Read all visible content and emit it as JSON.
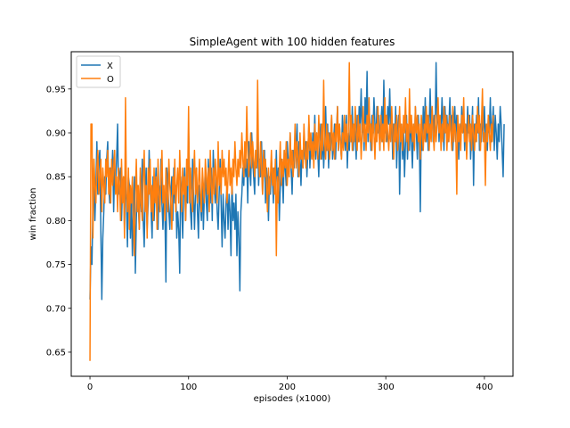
{
  "chart_data": {
    "type": "line",
    "title": "SimpleAgent with 100 hidden features",
    "xlabel": "episodes (x1000)",
    "ylabel": "win fraction",
    "xlim": [
      -19,
      429
    ],
    "ylim": [
      0.6225,
      0.9925
    ],
    "xticks": [
      0,
      100,
      200,
      300,
      400
    ],
    "yticks": [
      0.65,
      0.7,
      0.75,
      0.8,
      0.85,
      0.9,
      0.95
    ],
    "ytick_labels": [
      "0.65",
      "0.70",
      "0.75",
      "0.80",
      "0.85",
      "0.90",
      "0.95"
    ],
    "grid": false,
    "legend_position": "top-left",
    "x_start": 0,
    "x_step": 1,
    "series": [
      {
        "name": "X",
        "color": "#1f77b4",
        "values": [
          0.71,
          0.77,
          0.75,
          0.82,
          0.86,
          0.8,
          0.84,
          0.89,
          0.83,
          0.87,
          0.88,
          0.79,
          0.71,
          0.78,
          0.81,
          0.85,
          0.83,
          0.87,
          0.89,
          0.84,
          0.82,
          0.86,
          0.85,
          0.88,
          0.81,
          0.86,
          0.84,
          0.87,
          0.91,
          0.83,
          0.85,
          0.86,
          0.8,
          0.84,
          0.85,
          0.79,
          0.86,
          0.82,
          0.77,
          0.85,
          0.84,
          0.78,
          0.83,
          0.76,
          0.81,
          0.85,
          0.74,
          0.8,
          0.84,
          0.82,
          0.79,
          0.85,
          0.81,
          0.87,
          0.8,
          0.77,
          0.83,
          0.86,
          0.79,
          0.82,
          0.88,
          0.84,
          0.81,
          0.78,
          0.85,
          0.8,
          0.83,
          0.86,
          0.82,
          0.79,
          0.84,
          0.81,
          0.87,
          0.82,
          0.79,
          0.83,
          0.81,
          0.73,
          0.86,
          0.84,
          0.81,
          0.79,
          0.83,
          0.85,
          0.8,
          0.86,
          0.82,
          0.84,
          0.78,
          0.81,
          0.79,
          0.74,
          0.85,
          0.82,
          0.78,
          0.83,
          0.86,
          0.8,
          0.84,
          0.82,
          0.9,
          0.85,
          0.81,
          0.79,
          0.87,
          0.83,
          0.79,
          0.83,
          0.86,
          0.81,
          0.78,
          0.84,
          0.82,
          0.8,
          0.85,
          0.79,
          0.83,
          0.86,
          0.82,
          0.8,
          0.87,
          0.84,
          0.82,
          0.86,
          0.8,
          0.88,
          0.84,
          0.82,
          0.85,
          0.81,
          0.79,
          0.83,
          0.87,
          0.82,
          0.77,
          0.83,
          0.8,
          0.78,
          0.82,
          0.84,
          0.79,
          0.83,
          0.81,
          0.76,
          0.85,
          0.8,
          0.82,
          0.79,
          0.83,
          0.76,
          0.81,
          0.78,
          0.72,
          0.81,
          0.83,
          0.86,
          0.84,
          0.88,
          0.85,
          0.87,
          0.82,
          0.89,
          0.86,
          0.84,
          0.9,
          0.87,
          0.85,
          0.83,
          0.88,
          0.86,
          0.9,
          0.84,
          0.87,
          0.85,
          0.89,
          0.83,
          0.86,
          0.88,
          0.82,
          0.86,
          0.84,
          0.8,
          0.85,
          0.83,
          0.87,
          0.85,
          0.82,
          0.86,
          0.84,
          0.88,
          0.83,
          0.86,
          0.8,
          0.84,
          0.87,
          0.85,
          0.82,
          0.88,
          0.86,
          0.84,
          0.89,
          0.87,
          0.85,
          0.9,
          0.86,
          0.83,
          0.88,
          0.86,
          0.9,
          0.87,
          0.91,
          0.85,
          0.89,
          0.87,
          0.84,
          0.88,
          0.86,
          0.9,
          0.87,
          0.89,
          0.85,
          0.88,
          0.91,
          0.86,
          0.89,
          0.87,
          0.9,
          0.88,
          0.92,
          0.87,
          0.9,
          0.88,
          0.85,
          0.89,
          0.91,
          0.87,
          0.9,
          0.86,
          0.89,
          0.93,
          0.88,
          0.91,
          0.86,
          0.9,
          0.88,
          0.92,
          0.87,
          0.89,
          0.91,
          0.87,
          0.9,
          0.93,
          0.88,
          0.91,
          0.89,
          0.87,
          0.92,
          0.89,
          0.9,
          0.88,
          0.92,
          0.86,
          0.9,
          0.88,
          0.91,
          0.89,
          0.93,
          0.88,
          0.91,
          0.9,
          0.87,
          0.92,
          0.89,
          0.93,
          0.91,
          0.95,
          0.9,
          0.92,
          0.88,
          0.94,
          0.91,
          0.97,
          0.89,
          0.93,
          0.91,
          0.88,
          0.92,
          0.9,
          0.94,
          0.91,
          0.89,
          0.93,
          0.9,
          0.92,
          0.88,
          0.91,
          0.93,
          0.89,
          0.96,
          0.9,
          0.92,
          0.89,
          0.93,
          0.91,
          0.95,
          0.9,
          0.92,
          0.87,
          0.91,
          0.89,
          0.93,
          0.86,
          0.9,
          0.92,
          0.83,
          0.89,
          0.91,
          0.87,
          0.9,
          0.85,
          0.89,
          0.92,
          0.87,
          0.9,
          0.88,
          0.92,
          0.89,
          0.86,
          0.91,
          0.88,
          0.93,
          0.9,
          0.87,
          0.92,
          0.89,
          0.81,
          0.91,
          0.88,
          0.93,
          0.9,
          0.94,
          0.89,
          0.92,
          0.88,
          0.91,
          0.95,
          0.9,
          0.93,
          0.89,
          0.92,
          0.9,
          0.98,
          0.91,
          0.93,
          0.89,
          0.92,
          0.9,
          0.94,
          0.91,
          0.88,
          0.93,
          0.9,
          0.92,
          0.89,
          0.91,
          0.94,
          0.9,
          0.92,
          0.88,
          0.91,
          0.93,
          0.89,
          0.92,
          0.9,
          0.87,
          0.91,
          0.89,
          0.93,
          0.9,
          0.92,
          0.88,
          0.91,
          0.89,
          0.93,
          0.9,
          0.92,
          0.87,
          0.9,
          0.93,
          0.84,
          0.91,
          0.89,
          0.92,
          0.9,
          0.94,
          0.88,
          0.91,
          0.89,
          0.92,
          0.9,
          0.93,
          0.89,
          0.91,
          0.88,
          0.92,
          0.9,
          0.94,
          0.89,
          0.91,
          0.93,
          0.88,
          0.92,
          0.9,
          0.87,
          0.91,
          0.89,
          0.93,
          0.91,
          0.88,
          0.85,
          0.91
        ]
      },
      {
        "name": "O",
        "color": "#ff7f0e",
        "values": [
          0.64,
          0.91,
          0.91,
          0.78,
          0.87,
          0.84,
          0.82,
          0.86,
          0.88,
          0.83,
          0.85,
          0.87,
          0.81,
          0.86,
          0.84,
          0.82,
          0.87,
          0.85,
          0.88,
          0.83,
          0.86,
          0.82,
          0.87,
          0.84,
          0.86,
          0.88,
          0.83,
          0.85,
          0.81,
          0.86,
          0.84,
          0.8,
          0.87,
          0.82,
          0.85,
          0.78,
          0.94,
          0.83,
          0.81,
          0.86,
          0.79,
          0.84,
          0.82,
          0.85,
          0.8,
          0.76,
          0.83,
          0.87,
          0.81,
          0.84,
          0.79,
          0.86,
          0.82,
          0.8,
          0.85,
          0.88,
          0.81,
          0.84,
          0.78,
          0.86,
          0.83,
          0.87,
          0.81,
          0.84,
          0.8,
          0.86,
          0.82,
          0.85,
          0.79,
          0.87,
          0.83,
          0.81,
          0.85,
          0.88,
          0.82,
          0.84,
          0.8,
          0.86,
          0.83,
          0.81,
          0.87,
          0.84,
          0.82,
          0.79,
          0.85,
          0.83,
          0.87,
          0.81,
          0.84,
          0.86,
          0.82,
          0.88,
          0.84,
          0.81,
          0.86,
          0.83,
          0.85,
          0.8,
          0.87,
          0.84,
          0.93,
          0.82,
          0.86,
          0.83,
          0.81,
          0.85,
          0.88,
          0.83,
          0.86,
          0.82,
          0.84,
          0.87,
          0.83,
          0.81,
          0.86,
          0.84,
          0.82,
          0.87,
          0.85,
          0.83,
          0.86,
          0.81,
          0.88,
          0.84,
          0.82,
          0.86,
          0.83,
          0.87,
          0.85,
          0.82,
          0.89,
          0.84,
          0.86,
          0.83,
          0.88,
          0.85,
          0.87,
          0.84,
          0.86,
          0.82,
          0.85,
          0.88,
          0.84,
          0.86,
          0.83,
          0.87,
          0.85,
          0.89,
          0.86,
          0.84,
          0.87,
          0.85,
          0.88,
          0.86,
          0.9,
          0.87,
          0.85,
          0.89,
          0.86,
          0.93,
          0.88,
          0.85,
          0.87,
          0.9,
          0.86,
          0.89,
          0.87,
          0.85,
          0.88,
          0.86,
          0.96,
          0.87,
          0.85,
          0.89,
          0.86,
          0.83,
          0.88,
          0.85,
          0.87,
          0.84,
          0.81,
          0.86,
          0.83,
          0.85,
          0.88,
          0.84,
          0.86,
          0.83,
          0.87,
          0.76,
          0.85,
          0.82,
          0.86,
          0.89,
          0.84,
          0.87,
          0.85,
          0.88,
          0.86,
          0.89,
          0.84,
          0.87,
          0.85,
          0.9,
          0.86,
          0.88,
          0.85,
          0.87,
          0.91,
          0.86,
          0.89,
          0.87,
          0.85,
          0.9,
          0.87,
          0.88,
          0.86,
          0.91,
          0.88,
          0.86,
          0.89,
          0.87,
          0.92,
          0.88,
          0.9,
          0.87,
          0.89,
          0.86,
          0.91,
          0.88,
          0.9,
          0.87,
          0.92,
          0.89,
          0.87,
          0.91,
          0.88,
          0.96,
          0.89,
          0.87,
          0.91,
          0.88,
          0.9,
          0.87,
          0.89,
          0.92,
          0.88,
          0.9,
          0.87,
          0.91,
          0.89,
          0.93,
          0.88,
          0.91,
          0.89,
          0.87,
          0.9,
          0.88,
          0.92,
          0.89,
          0.91,
          0.88,
          0.9,
          0.98,
          0.89,
          0.92,
          0.88,
          0.91,
          0.89,
          0.93,
          0.9,
          0.88,
          0.92,
          0.89,
          0.91,
          0.87,
          0.9,
          0.93,
          0.89,
          0.91,
          0.88,
          0.92,
          0.9,
          0.94,
          0.89,
          0.91,
          0.88,
          0.92,
          0.9,
          0.87,
          0.91,
          0.89,
          0.93,
          0.9,
          0.88,
          0.92,
          0.89,
          0.91,
          0.88,
          0.94,
          0.89,
          0.92,
          0.9,
          0.88,
          0.91,
          0.89,
          0.93,
          0.9,
          0.87,
          0.91,
          0.89,
          0.92,
          0.88,
          0.9,
          0.93,
          0.89,
          0.91,
          0.88,
          0.92,
          0.9,
          0.94,
          0.89,
          0.91,
          0.88,
          0.95,
          0.9,
          0.92,
          0.89,
          0.91,
          0.88,
          0.93,
          0.9,
          0.92,
          0.89,
          0.91,
          0.87,
          0.92,
          0.9,
          0.88,
          0.91,
          0.89,
          0.93,
          0.9,
          0.92,
          0.88,
          0.91,
          0.89,
          0.93,
          0.9,
          0.88,
          0.92,
          0.89,
          0.91,
          0.94,
          0.9,
          0.92,
          0.88,
          0.91,
          0.89,
          0.93,
          0.9,
          0.92,
          0.88,
          0.91,
          0.89,
          0.92,
          0.9,
          0.88,
          0.93,
          0.89,
          0.91,
          0.9,
          0.83,
          0.92,
          0.89,
          0.91,
          0.88,
          0.92,
          0.9,
          0.94,
          0.89,
          0.91,
          0.87,
          0.9,
          0.92,
          0.89,
          0.91,
          0.88,
          0.92,
          0.9,
          0.88,
          0.91,
          0.89,
          0.93,
          0.9,
          0.92,
          0.88,
          0.91,
          0.95,
          0.89,
          0.9,
          0.84,
          0.91,
          0.89,
          0.92,
          0.9,
          0.88,
          0.91,
          0.89,
          0.92
        ]
      }
    ]
  }
}
